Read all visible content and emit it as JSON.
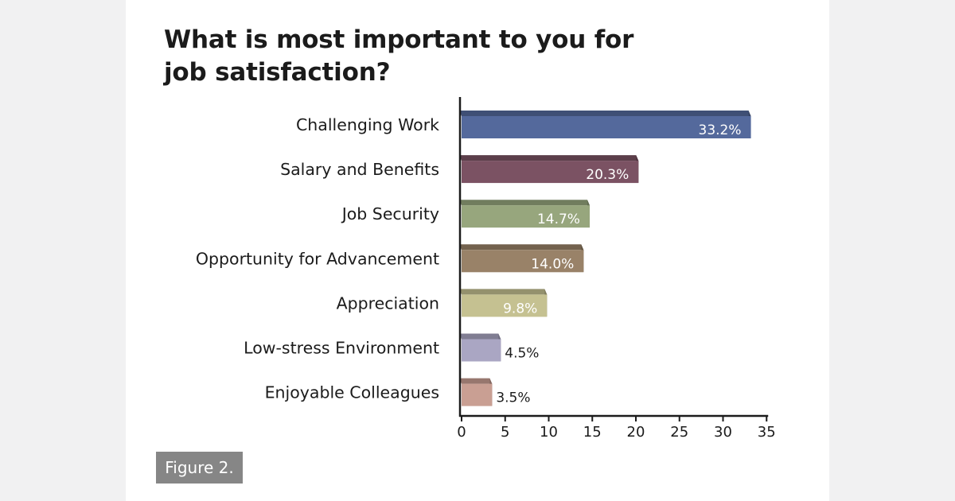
{
  "figure_label": "Figure 2.",
  "chart_data": {
    "type": "bar",
    "orientation": "horizontal",
    "title": "What is most important to you for job satisfaction?",
    "categories": [
      "Challenging Work",
      "Salary and Benefits",
      "Job Security",
      "Opportunity for Advancement",
      "Appreciation",
      "Low-stress Environment",
      "Enjoyable Colleagues"
    ],
    "values": [
      33.2,
      20.3,
      14.7,
      14.0,
      9.8,
      4.5,
      3.5
    ],
    "value_labels": [
      "33.2%",
      "20.3%",
      "14.7%",
      "14.0%",
      "9.8%",
      "4.5%",
      "3.5%"
    ],
    "colors": [
      "#54699c",
      "#7b5263",
      "#97a67d",
      "#998268",
      "#c5c191",
      "#aaa6c3",
      "#c99f93"
    ],
    "xlim": [
      0,
      35
    ],
    "xticks": [
      0,
      5,
      10,
      15,
      20,
      25,
      30,
      35
    ],
    "xlabel": "",
    "ylabel": "",
    "grid": false,
    "style": "3d"
  }
}
